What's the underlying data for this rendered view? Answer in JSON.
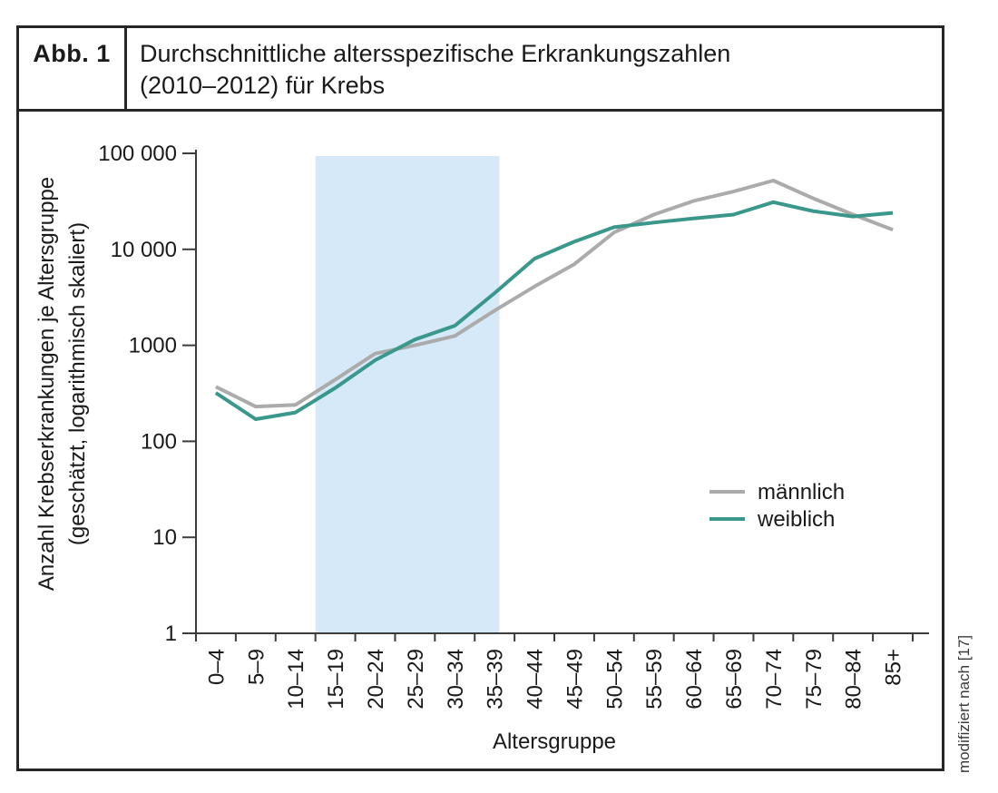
{
  "header": {
    "figure_label": "Abb. 1",
    "title_line1": "Durchschnittliche altersspezifische Erkrankungszahlen",
    "title_line2": "(2010–2012) für Krebs"
  },
  "caption_right": "modifiziert nach [17]",
  "chart_data": {
    "type": "line",
    "title": "Durchschnittliche altersspezifische Erkrankungszahlen (2010–2012) für Krebs",
    "xlabel": "Altersgruppe",
    "ylabel_line1": "Anzahl Krebserkrankungen je Altersgruppe",
    "ylabel_line2": "(geschätzt, logarithmisch skaliert)",
    "y_scale": "log",
    "ylim": [
      1,
      100000
    ],
    "grid": false,
    "legend_position": "right-middle",
    "y_ticks": [
      {
        "value": 100000,
        "label": "100 000"
      },
      {
        "value": 10000,
        "label": "10 000"
      },
      {
        "value": 1000,
        "label": "1000"
      },
      {
        "value": 100,
        "label": "100"
      },
      {
        "value": 10,
        "label": "10"
      },
      {
        "value": 1,
        "label": "1"
      }
    ],
    "categories": [
      "0–4",
      "5–9",
      "10–14",
      "15–19",
      "20–24",
      "25–29",
      "30–34",
      "35–39",
      "40–44",
      "45–49",
      "50–54",
      "55–59",
      "60–64",
      "65–69",
      "70–74",
      "75–79",
      "80–84",
      "85+"
    ],
    "series": [
      {
        "name": "männlich",
        "color": "#ababab",
        "values": [
          370,
          230,
          240,
          440,
          820,
          1000,
          1250,
          2300,
          4100,
          7000,
          15000,
          23000,
          32000,
          40000,
          52000,
          34000,
          23000,
          16000
        ]
      },
      {
        "name": "weiblich",
        "color": "#3a978c",
        "values": [
          320,
          170,
          200,
          360,
          700,
          1150,
          1600,
          3500,
          8000,
          12000,
          17000,
          19000,
          21000,
          23000,
          31000,
          25000,
          22000,
          24000
        ]
      }
    ],
    "highlight_band": {
      "from_group": "15–19",
      "to_group": "35–39",
      "color": "#d5e9f8"
    },
    "axis_color": "#3c3c3c",
    "text_color": "#1a1a1a"
  }
}
